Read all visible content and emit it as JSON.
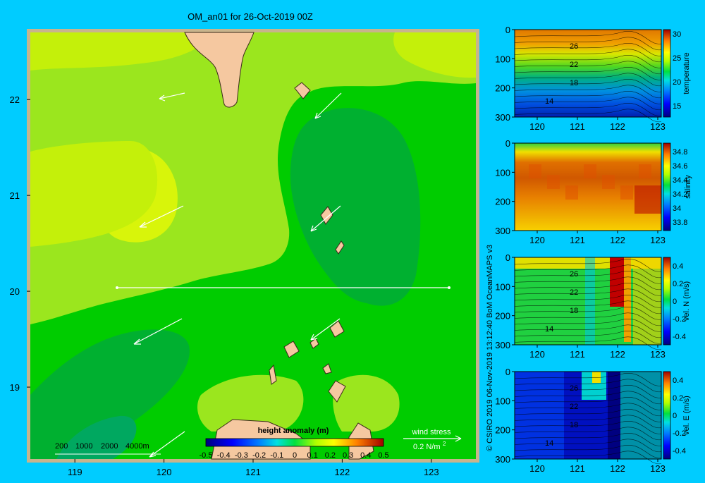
{
  "title": "OM_an01 for 26-Oct-2019 00Z",
  "credit": "© CSIRO 2019   06-Nov-2019 13:12:40 BoM OceanMAPS v3",
  "colors": {
    "background": "#00ccff",
    "frame": "#c8b48c",
    "land": "#f5c8a0",
    "section_line": "#ffffff",
    "wind_arrow": "#ffffff"
  },
  "map": {
    "x_ticks": [
      "119",
      "120",
      "121",
      "122",
      "123"
    ],
    "y_ticks": [
      "22",
      "21",
      "20",
      "19"
    ],
    "lon_range": [
      118.5,
      123.5
    ],
    "lat_range": [
      18.25,
      22.7
    ],
    "section_line": {
      "lat": 20.0,
      "lon_start": 119.5,
      "lon_end": 123.2
    },
    "bathymetry_legend": [
      "200",
      "1000",
      "2000",
      "4000m"
    ],
    "wind_stress_label": "wind stress",
    "wind_stress_value": "0.2 N/m",
    "wind_stress_exp": "2",
    "colorbar": {
      "title": "height anomaly (m)",
      "ticks": [
        "-0.5",
        "-0.4",
        "-0.3",
        "-0.2",
        "-0.1",
        "0",
        "0.1",
        "0.2",
        "0.3",
        "0.4",
        "0.5"
      ]
    }
  },
  "chart_data": [
    {
      "type": "heatmap",
      "name": "sea surface height anomaly map",
      "title": "OM_an01 for 26-Oct-2019 00Z",
      "colorbar_label": "height anomaly (m)",
      "colorbar_range": [
        -0.5,
        0.5
      ],
      "xlim": [
        118.5,
        123.5
      ],
      "ylim": [
        18.25,
        22.7
      ],
      "section_line": {
        "lat": 20.0,
        "lon": [
          119.5,
          123.2
        ]
      },
      "wind_stress_reference": "0.2 N/m2"
    },
    {
      "type": "heatmap",
      "name": "temperature section",
      "colorbar_label": "temperature",
      "colorbar_ticks": [
        15,
        20,
        25,
        30
      ],
      "contour_labels": [
        "26",
        "22",
        "18",
        "14"
      ],
      "x_ticks": [
        120,
        121,
        122,
        123
      ],
      "y_ticks": [
        0,
        100,
        200,
        300
      ]
    },
    {
      "type": "heatmap",
      "name": "salinity section",
      "colorbar_label": "salinity",
      "colorbar_ticks": [
        33.8,
        34,
        34.2,
        34.4,
        34.6,
        34.8
      ],
      "x_ticks": [
        120,
        121,
        122,
        123
      ],
      "y_ticks": [
        0,
        100,
        200,
        300
      ]
    },
    {
      "type": "heatmap",
      "name": "northward velocity section",
      "colorbar_label": "vel. N (m/s)",
      "colorbar_ticks": [
        -0.4,
        -0.2,
        0,
        0.2,
        0.4
      ],
      "contour_labels": [
        "26",
        "22",
        "18",
        "14"
      ],
      "x_ticks": [
        120,
        121,
        122,
        123
      ],
      "y_ticks": [
        0,
        100,
        200,
        300
      ]
    },
    {
      "type": "heatmap",
      "name": "eastward velocity section",
      "colorbar_label": "vel. E (m/s)",
      "colorbar_ticks": [
        -0.4,
        -0.2,
        0,
        0.2,
        0.4
      ],
      "contour_labels": [
        "26",
        "22",
        "18",
        "14"
      ],
      "x_ticks": [
        120,
        121,
        122,
        123
      ],
      "y_ticks": [
        0,
        100,
        200,
        300
      ]
    }
  ],
  "panels": [
    {
      "id": "temp",
      "label": "temperature",
      "cbar_ticks": [
        "30",
        "25",
        "20",
        "15"
      ],
      "x_ticks": [
        "120",
        "121",
        "122",
        "123"
      ],
      "y_ticks": [
        "0",
        "100",
        "200",
        "300"
      ],
      "contour_labels": [
        "26",
        "22",
        "18",
        "14"
      ]
    },
    {
      "id": "sal",
      "label": "salinity",
      "cbar_ticks": [
        "34.8",
        "34.6",
        "34.4",
        "34.2",
        "34",
        "33.8"
      ],
      "x_ticks": [
        "120",
        "121",
        "122",
        "123"
      ],
      "y_ticks": [
        "0",
        "100",
        "200",
        "300"
      ],
      "contour_labels": []
    },
    {
      "id": "vn",
      "label": "vel. N (m/s)",
      "cbar_ticks": [
        "0.4",
        "0.2",
        "0",
        "-0.2",
        "-0.4"
      ],
      "x_ticks": [
        "120",
        "121",
        "122",
        "123"
      ],
      "y_ticks": [
        "0",
        "100",
        "200",
        "300"
      ],
      "contour_labels": [
        "26",
        "22",
        "18",
        "14"
      ]
    },
    {
      "id": "ve",
      "label": "vel. E (m/s)",
      "cbar_ticks": [
        "0.4",
        "0.2",
        "0",
        "-0.2",
        "-0.4"
      ],
      "x_ticks": [
        "120",
        "121",
        "122",
        "123"
      ],
      "y_ticks": [
        "0",
        "100",
        "200",
        "300"
      ],
      "contour_labels": [
        "26",
        "22",
        "18",
        "14"
      ]
    }
  ]
}
